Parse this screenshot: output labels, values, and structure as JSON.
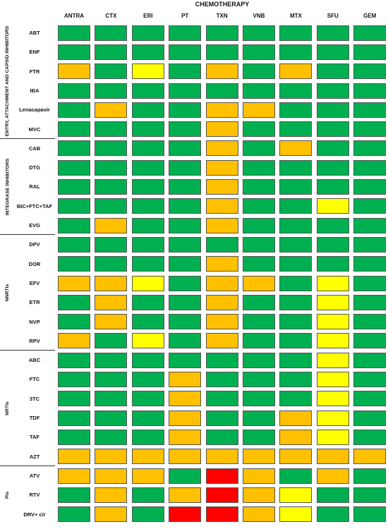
{
  "title": "CHEMOTHERAPY",
  "columns": [
    "ANTRA",
    "CTX",
    "ERI",
    "PT",
    "TXN",
    "VNB",
    "MTX",
    "SFU",
    "GEM"
  ],
  "colors": {
    "G": "#00b050",
    "O": "#ffc000",
    "Y": "#ffff00",
    "R": "#ff0000"
  },
  "groups": [
    {
      "label": "ENTRY, ATTACHMENT AND CAPSID INHIBITORS",
      "rows": 6
    },
    {
      "label": "INTEGRASE INHIBITORS",
      "rows": 5
    },
    {
      "label": "NNRTIs",
      "rows": 6
    },
    {
      "label": "NRTIs",
      "rows": 6
    },
    {
      "label": "PIs",
      "rows": 3
    }
  ],
  "rows": [
    {
      "label": "ABT",
      "cells": [
        "G",
        "G",
        "G",
        "G",
        "G",
        "G",
        "G",
        "G",
        "G"
      ]
    },
    {
      "label": "ENF",
      "cells": [
        "G",
        "G",
        "G",
        "G",
        "G",
        "G",
        "G",
        "G",
        "G"
      ]
    },
    {
      "label": "FTR",
      "cells": [
        "O",
        "G",
        "Y",
        "G",
        "O",
        "G",
        "O",
        "G",
        "G"
      ]
    },
    {
      "label": "IBA",
      "cells": [
        "G",
        "G",
        "G",
        "G",
        "G",
        "G",
        "G",
        "G",
        "G"
      ]
    },
    {
      "label": "Lenacapavir",
      "cells": [
        "G",
        "O",
        "G",
        "G",
        "O",
        "O",
        "G",
        "G",
        "G"
      ]
    },
    {
      "label": "MVC",
      "cells": [
        "G",
        "G",
        "G",
        "G",
        "O",
        "G",
        "G",
        "G",
        "G"
      ]
    },
    {
      "label": "CAB",
      "cells": [
        "G",
        "G",
        "G",
        "G",
        "O",
        "G",
        "O",
        "G",
        "G"
      ]
    },
    {
      "label": "DTG",
      "cells": [
        "G",
        "G",
        "G",
        "G",
        "O",
        "G",
        "G",
        "G",
        "G"
      ]
    },
    {
      "label": "RAL",
      "cells": [
        "G",
        "G",
        "G",
        "G",
        "O",
        "G",
        "G",
        "G",
        "G"
      ]
    },
    {
      "label": "BIC+FTC+TAF",
      "cells": [
        "G",
        "G",
        "G",
        "G",
        "O",
        "G",
        "G",
        "Y",
        "G"
      ]
    },
    {
      "label": "EVG",
      "cells": [
        "G",
        "O",
        "G",
        "G",
        "O",
        "G",
        "G",
        "G",
        "G"
      ]
    },
    {
      "label": "DPV",
      "cells": [
        "G",
        "G",
        "G",
        "G",
        "G",
        "G",
        "G",
        "G",
        "G"
      ]
    },
    {
      "label": "DOR",
      "cells": [
        "G",
        "G",
        "G",
        "G",
        "O",
        "G",
        "G",
        "G",
        "G"
      ]
    },
    {
      "label": "EFV",
      "cells": [
        "O",
        "O",
        "Y",
        "G",
        "O",
        "O",
        "G",
        "Y",
        "G"
      ]
    },
    {
      "label": "ETR",
      "cells": [
        "G",
        "O",
        "G",
        "G",
        "O",
        "G",
        "G",
        "Y",
        "G"
      ]
    },
    {
      "label": "NVP",
      "cells": [
        "G",
        "O",
        "G",
        "G",
        "O",
        "G",
        "G",
        "Y",
        "G"
      ]
    },
    {
      "label": "RPV",
      "cells": [
        "O",
        "G",
        "Y",
        "G",
        "O",
        "G",
        "G",
        "Y",
        "G"
      ]
    },
    {
      "label": "ABC",
      "cells": [
        "G",
        "G",
        "G",
        "G",
        "G",
        "G",
        "G",
        "Y",
        "G"
      ]
    },
    {
      "label": "FTC",
      "cells": [
        "G",
        "G",
        "G",
        "O",
        "G",
        "G",
        "G",
        "Y",
        "G"
      ]
    },
    {
      "label": "3TC",
      "cells": [
        "G",
        "G",
        "G",
        "O",
        "G",
        "G",
        "G",
        "Y",
        "G"
      ]
    },
    {
      "label": "TDF",
      "cells": [
        "G",
        "G",
        "G",
        "O",
        "G",
        "G",
        "O",
        "Y",
        "G"
      ]
    },
    {
      "label": "TAF",
      "cells": [
        "G",
        "G",
        "G",
        "O",
        "G",
        "G",
        "O",
        "Y",
        "G"
      ]
    },
    {
      "label": "AZT",
      "cells": [
        "O",
        "O",
        "O",
        "O",
        "O",
        "O",
        "O",
        "O",
        "O"
      ]
    },
    {
      "label": "ATV",
      "cells": [
        "O",
        "O",
        "O",
        "G",
        "R",
        "O",
        "G",
        "O",
        "G"
      ]
    },
    {
      "label": "RTV",
      "cells": [
        "G",
        "O",
        "G",
        "O",
        "R",
        "O",
        "Y",
        "G",
        "G"
      ]
    },
    {
      "label": "DRV+ c/r",
      "cells": [
        "G",
        "O",
        "G",
        "R",
        "R",
        "O",
        "Y",
        "G",
        "G"
      ]
    }
  ]
}
